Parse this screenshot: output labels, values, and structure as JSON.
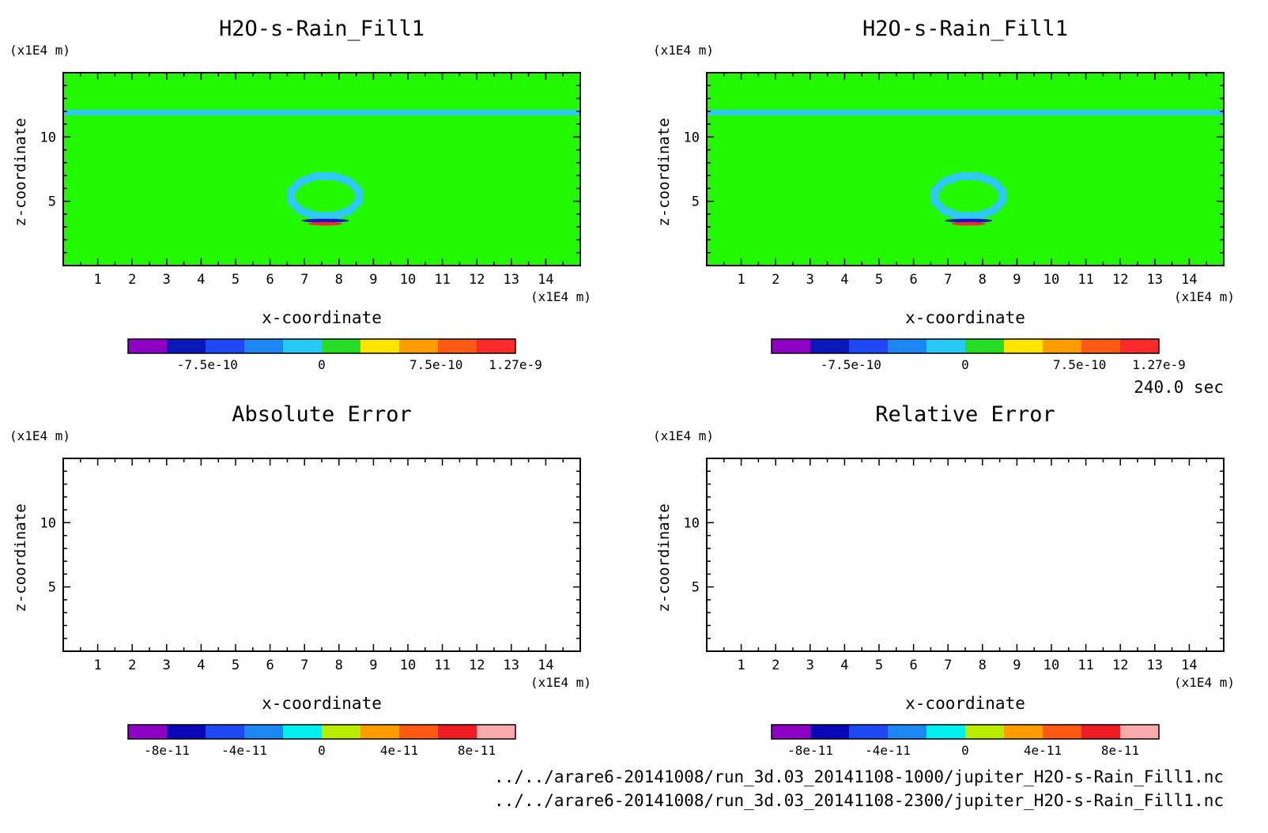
{
  "time_label": "240.0 sec",
  "files": [
    "../../arare6-20141008/run_3d.03_20141108-1000/jupiter_H2O-s-Rain_Fill1.nc",
    "../../arare6-20141008/run_3d.03_20141108-2300/jupiter_H2O-s-Rain_Fill1.nc"
  ],
  "chart_data": [
    {
      "type": "heatmap",
      "title": "H2O-s-Rain_Fill1",
      "xlabel": "x-coordinate",
      "ylabel": "z-coordinate",
      "x_unit": "(x1E4 m)",
      "y_unit": "(x1E4 m)",
      "xlim": [
        0,
        15
      ],
      "ylim": [
        0,
        15
      ],
      "x_ticks": [
        1,
        2,
        3,
        4,
        5,
        6,
        7,
        8,
        9,
        10,
        11,
        12,
        13,
        14
      ],
      "y_ticks": [
        5,
        10
      ],
      "background": "#22f800",
      "features": [
        {
          "kind": "band",
          "z": 11.9,
          "color": "#2fc9f7"
        },
        {
          "kind": "ring",
          "x": 7.6,
          "z": 5.4,
          "color": "#2fc9f7"
        },
        {
          "kind": "dipole",
          "x": 7.6,
          "z": 3.4,
          "colors": [
            "#1515c8",
            "#ff2828"
          ]
        }
      ],
      "colorbar": {
        "colors": [
          "#8d00c4",
          "#0a18b8",
          "#1f48f5",
          "#1c86f2",
          "#28c8f7",
          "#24dd24",
          "#ffe400",
          "#ff9d00",
          "#ff5a14",
          "#fb2a2a"
        ],
        "tick_labels": [
          {
            "label": "-7.5e-10",
            "value": -7.5e-10
          },
          {
            "label": "0",
            "value": 0
          },
          {
            "label": "7.5e-10",
            "value": 7.5e-10
          },
          {
            "label": "1.27e-9",
            "value": 1.27e-09
          }
        ],
        "min": -1.27e-09,
        "max": 1.27e-09
      }
    },
    {
      "type": "heatmap",
      "title": "H2O-s-Rain_Fill1",
      "xlabel": "x-coordinate",
      "ylabel": "z-coordinate",
      "x_unit": "(x1E4 m)",
      "y_unit": "(x1E4 m)",
      "xlim": [
        0,
        15
      ],
      "ylim": [
        0,
        15
      ],
      "x_ticks": [
        1,
        2,
        3,
        4,
        5,
        6,
        7,
        8,
        9,
        10,
        11,
        12,
        13,
        14
      ],
      "y_ticks": [
        5,
        10
      ],
      "background": "#22f800",
      "features": [
        {
          "kind": "band",
          "z": 11.9,
          "color": "#2fc9f7"
        },
        {
          "kind": "ring",
          "x": 7.6,
          "z": 5.4,
          "color": "#2fc9f7"
        },
        {
          "kind": "dipole",
          "x": 7.6,
          "z": 3.4,
          "colors": [
            "#1515c8",
            "#ff2828"
          ]
        }
      ],
      "colorbar": {
        "colors": [
          "#8d00c4",
          "#0a18b8",
          "#1f48f5",
          "#1c86f2",
          "#28c8f7",
          "#24dd24",
          "#ffe400",
          "#ff9d00",
          "#ff5a14",
          "#fb2a2a"
        ],
        "tick_labels": [
          {
            "label": "-7.5e-10",
            "value": -7.5e-10
          },
          {
            "label": "0",
            "value": 0
          },
          {
            "label": "7.5e-10",
            "value": 7.5e-10
          },
          {
            "label": "1.27e-9",
            "value": 1.27e-09
          }
        ],
        "min": -1.27e-09,
        "max": 1.27e-09
      }
    },
    {
      "type": "heatmap",
      "title": "Absolute Error",
      "xlabel": "x-coordinate",
      "ylabel": "z-coordinate",
      "x_unit": "(x1E4 m)",
      "y_unit": "(x1E4 m)",
      "xlim": [
        0,
        15
      ],
      "ylim": [
        0,
        15
      ],
      "x_ticks": [
        1,
        2,
        3,
        4,
        5,
        6,
        7,
        8,
        9,
        10,
        11,
        12,
        13,
        14
      ],
      "y_ticks": [
        5,
        10
      ],
      "background": "#ffffff",
      "features": [],
      "colorbar": {
        "colors": [
          "#8d00c4",
          "#0a06b5",
          "#1f48f5",
          "#1c86f2",
          "#00f0f0",
          "#b8ec00",
          "#ff9d00",
          "#ff5a14",
          "#ee1c24",
          "#f9aaaa"
        ],
        "tick_labels": [
          {
            "label": "-8e-11",
            "value": -8e-11
          },
          {
            "label": "-4e-11",
            "value": -4e-11
          },
          {
            "label": "0",
            "value": 0
          },
          {
            "label": "4e-11",
            "value": 4e-11
          },
          {
            "label": "8e-11",
            "value": 8e-11
          }
        ],
        "min": -1e-10,
        "max": 1e-10
      }
    },
    {
      "type": "heatmap",
      "title": "Relative Error",
      "xlabel": "x-coordinate",
      "ylabel": "z-coordinate",
      "x_unit": "(x1E4 m)",
      "y_unit": "(x1E4 m)",
      "xlim": [
        0,
        15
      ],
      "ylim": [
        0,
        15
      ],
      "x_ticks": [
        1,
        2,
        3,
        4,
        5,
        6,
        7,
        8,
        9,
        10,
        11,
        12,
        13,
        14
      ],
      "y_ticks": [
        5,
        10
      ],
      "background": "#ffffff",
      "features": [],
      "colorbar": {
        "colors": [
          "#8d00c4",
          "#0a06b5",
          "#1f48f5",
          "#1c86f2",
          "#00f0f0",
          "#b8ec00",
          "#ff9d00",
          "#ff5a14",
          "#ee1c24",
          "#f9aaaa"
        ],
        "tick_labels": [
          {
            "label": "-8e-11",
            "value": -8e-11
          },
          {
            "label": "-4e-11",
            "value": -4e-11
          },
          {
            "label": "0",
            "value": 0
          },
          {
            "label": "4e-11",
            "value": 4e-11
          },
          {
            "label": "8e-11",
            "value": 8e-11
          }
        ],
        "min": -1e-10,
        "max": 1e-10
      }
    }
  ]
}
